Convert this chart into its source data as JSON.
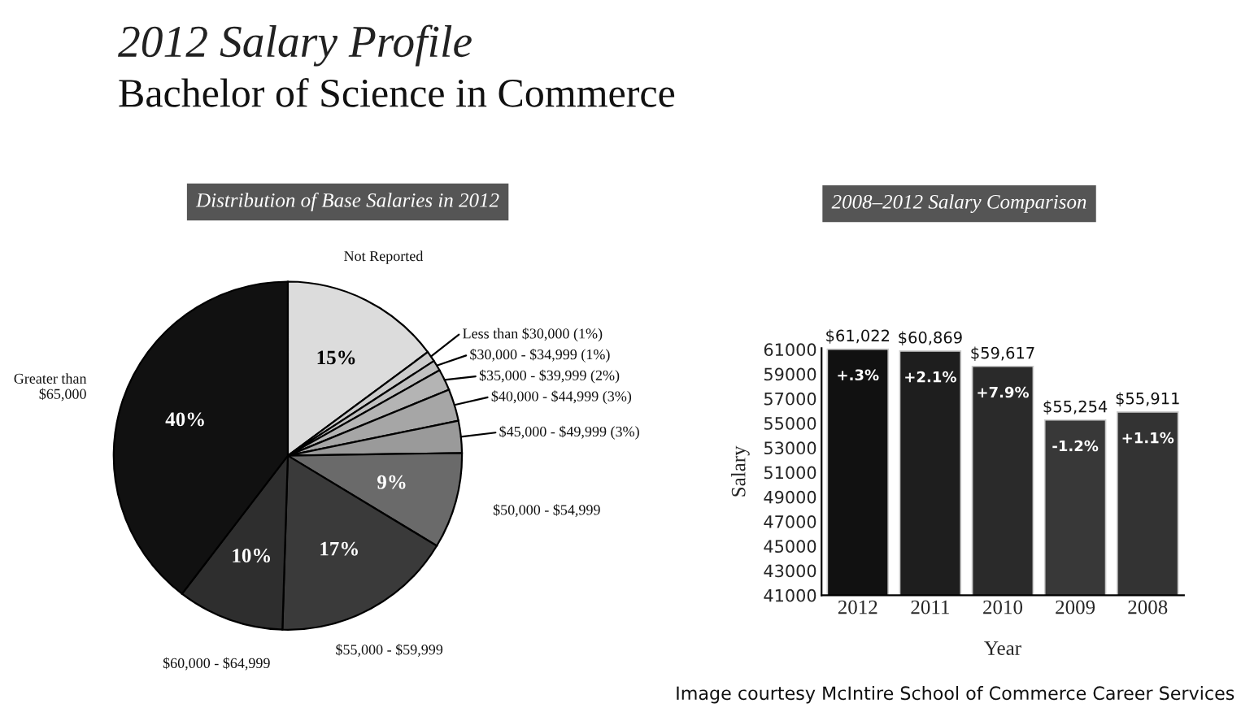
{
  "chart_data": [
    {
      "type": "other",
      "title": "2012 Salary Profile",
      "subtitle": "Bachelor of Science in Commerce"
    },
    {
      "type": "pie",
      "title": "Distribution of Base Salaries in 2012",
      "categories": [
        "Not Reported",
        "Less than $30,000 (1%)",
        "$30,000 - $34,999 (1%)",
        "$35,000 - $39,999 (2%)",
        "$40,000 - $44,999 (3%)",
        "$45,000 - $49,999 (3%)",
        "$50,000 - $54,999",
        "$55,000 - $59,999",
        "$60,000 - $64,999",
        "Greater than\n$65,000"
      ],
      "values": [
        15,
        1,
        1,
        2,
        3,
        3,
        9,
        17,
        10,
        40
      ],
      "value_labels": [
        "15%",
        null,
        null,
        null,
        null,
        null,
        "9%",
        "17%",
        "10%",
        "40%"
      ],
      "colors": [
        "#dcdcdc",
        "#cccccc",
        "#c0c0c0",
        "#b4b4b4",
        "#a6a6a6",
        "#9a9a9a",
        "#6a6a6a",
        "#3a3a3a",
        "#2e2e2e",
        "#111111"
      ]
    },
    {
      "type": "bar",
      "title": "2008–2012 Salary Comparison",
      "xlabel": "Year",
      "ylabel": "Salary",
      "categories": [
        "2012",
        "2011",
        "2010",
        "2009",
        "2008"
      ],
      "values": [
        61022,
        60869,
        59617,
        55254,
        55911
      ],
      "value_labels": [
        "$61,022",
        "$60,869",
        "$59,617",
        "$55,254",
        "$55,911"
      ],
      "colors": [
        "#111111",
        "#1e1e1e",
        "#2a2a2a",
        "#383838",
        "#333333"
      ],
      "ylim": [
        41000,
        61100
      ],
      "yticks": [
        41000,
        43000,
        45000,
        47000,
        49000,
        51000,
        53000,
        55000,
        57000,
        59000,
        61000
      ],
      "annotations": [
        {
          "text": "+.3%",
          "x": "2012",
          "y": 61022
        },
        {
          "text": "+2.1%",
          "x": "2011",
          "y": 60869
        },
        {
          "text": "+7.9%",
          "x": "2010",
          "y": 59617
        },
        {
          "text": "-1.2%",
          "x": "2009",
          "y": 55254
        },
        {
          "text": "+1.1%",
          "x": "2008",
          "y": 55911
        },
        "Image courtesy McIntire School of Commerce Career Services"
      ]
    }
  ]
}
